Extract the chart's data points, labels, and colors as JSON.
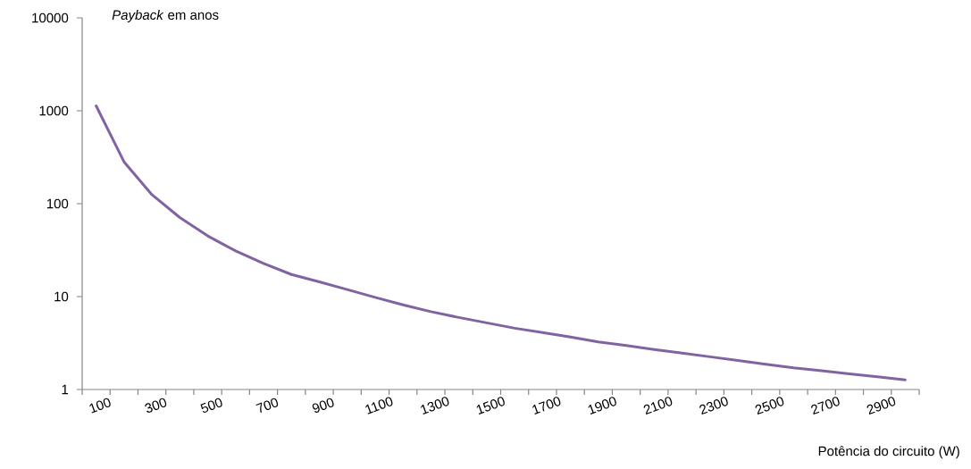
{
  "chart_data": {
    "type": "line",
    "xlabel": "Potência do circuito (W)",
    "ylabel": "*Payback* em anos",
    "categories": [
      "100",
      null,
      "300",
      null,
      "500",
      null,
      "700",
      null,
      "900",
      null,
      "1100",
      null,
      "1300",
      null,
      "1500",
      null,
      "1700",
      null,
      "1900",
      null,
      "2100",
      null,
      "2300",
      null,
      "2500",
      null,
      "2700",
      null,
      "2900",
      null
    ],
    "series": [
      {
        "color": "#8064a2",
        "values": [
          1130,
          282,
          125,
          71,
          45,
          31,
          22.7,
          17.3,
          14.4,
          11.9,
          9.8,
          8.15,
          6.88,
          5.96,
          5.22,
          4.57,
          4.1,
          3.67,
          3.25,
          2.98,
          2.7,
          2.47,
          2.25,
          2.05,
          1.87,
          1.71,
          1.59,
          1.47,
          1.37,
          1.27
        ]
      }
    ],
    "ylim": [
      1,
      10000
    ],
    "yticks": [
      1,
      10,
      100,
      1000,
      10000
    ],
    "log": "y",
    "grid": false,
    "legend": false,
    "marker": "none",
    "line_style": "solid"
  }
}
